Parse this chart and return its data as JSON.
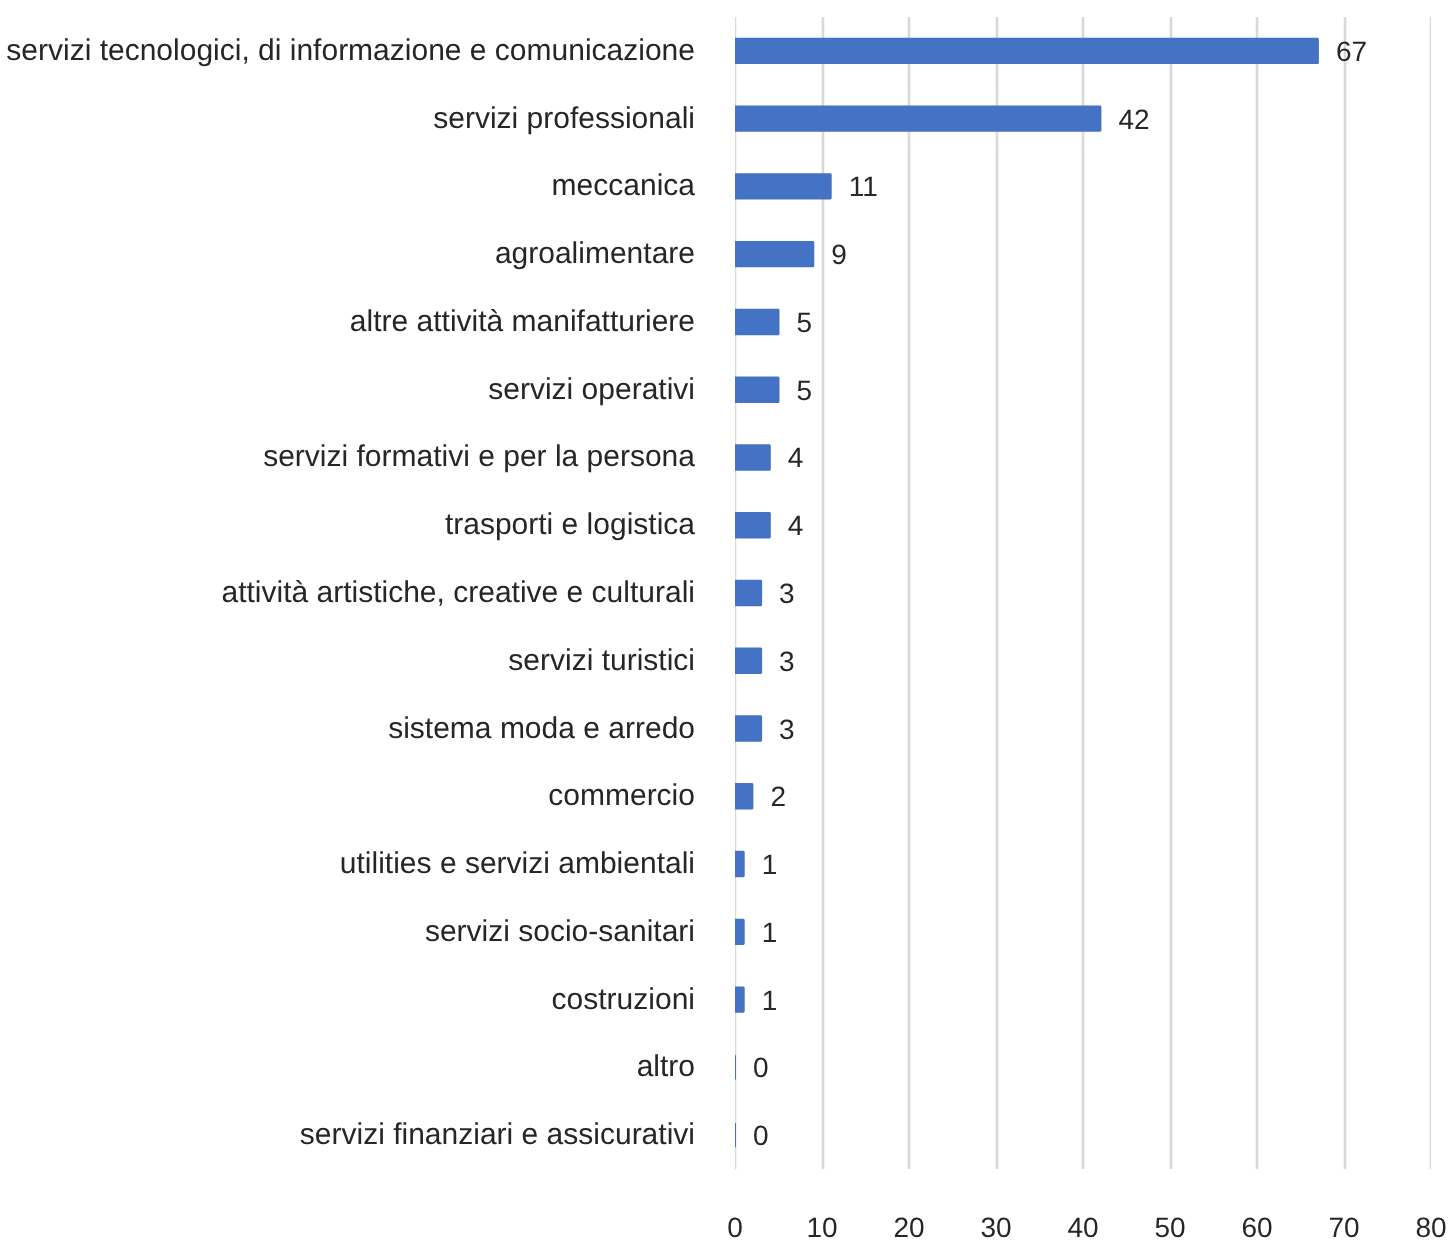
{
  "chart_data": {
    "type": "bar",
    "orientation": "horizontal",
    "categories": [
      "servizi tecnologici, di informazione e comunicazione",
      "servizi professionali",
      "meccanica",
      "agroalimentare",
      "altre attività manifatturiere",
      "servizi operativi",
      "servizi formativi e per la persona",
      "trasporti e logistica",
      "attività artistiche, creative e culturali",
      "servizi turistici",
      "sistema moda e arredo",
      "commercio",
      "utilities e servizi ambientali",
      "servizi socio-sanitari",
      "costruzioni",
      "altro",
      "servizi finanziari e assicurativi"
    ],
    "values": [
      67,
      42,
      11,
      9,
      5,
      5,
      4,
      4,
      3,
      3,
      3,
      2,
      1,
      1,
      1,
      0,
      0
    ],
    "color": "#4472c4",
    "xlim": [
      0,
      80
    ],
    "xticks": [
      0,
      10,
      20,
      30,
      40,
      50,
      60,
      70,
      80
    ],
    "grid": "x",
    "data_labels": true
  }
}
